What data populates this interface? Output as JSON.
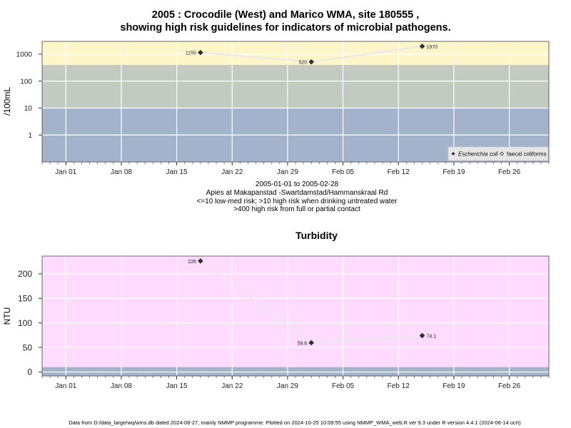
{
  "title_line1": "2005 : Crocodile (West) and Marico WMA, site 180555 ,",
  "title_line2": "showing high risk guidelines for indicators of microbial pathogens.",
  "subtitle_lines": [
    "2005-01-01 to 2005-02-28",
    "Apies at Makapanstad -Swartdamstad/Hammanskraal Rd",
    "<=10 low-med risk; >10 high risk when drinking untreated water",
    ">400 high risk from full or partial contact"
  ],
  "footer": "Data from D:/data_large/wq/wms.db dated 2024-08-27, mainly NMMP programme. Plotted on 2024-10-25 10:09:55 using NMMP_WMA_web.R ver 9.3 under R version 4.4.1 (2024-06-14 ucrt)",
  "colors": {
    "zone_low": "#a3b3cc",
    "zone_mid": "#c3cbc0",
    "zone_high": "#fef6c9",
    "turbidity_bg": "#ffdcff",
    "turbidity_low": "#a3b3cc",
    "grid": "#ffffff",
    "series_line": "#e8e8e8",
    "marker": "#333333"
  },
  "chart_data": [
    {
      "type": "line",
      "title": "",
      "ylabel": "/100mL",
      "y_scale": "log",
      "ylim": [
        0.1,
        3000
      ],
      "y_ticks": [
        1,
        10,
        100,
        1000
      ],
      "y_tick_labels": [
        "1",
        "10",
        "100",
        "1000"
      ],
      "x_ticks": [
        "2005-01-01",
        "2005-01-08",
        "2005-01-15",
        "2005-01-22",
        "2005-01-29",
        "2005-02-05",
        "2005-02-12",
        "2005-02-19",
        "2005-02-26"
      ],
      "x_tick_labels": [
        "Jan 01",
        "Jan 08",
        "Jan 15",
        "Jan 22",
        "Jan 29",
        "Feb 05",
        "Feb 12",
        "Feb 19",
        "Feb 26"
      ],
      "xlim": [
        "2004-12-29",
        "2005-03-03"
      ],
      "bands": [
        {
          "from": 0.1,
          "to": 10,
          "color": "#a3b3cc"
        },
        {
          "from": 10,
          "to": 400,
          "color": "#c3cbc0"
        },
        {
          "from": 400,
          "to": 3000,
          "color": "#fef6c9"
        }
      ],
      "legend": {
        "position": "bottom-right",
        "entries": [
          "Escherichia coli",
          "faecal coliforms"
        ]
      },
      "series": [
        {
          "name": "Escherichia coli",
          "points": [
            {
              "x": "2005-01-18",
              "y": 1155,
              "label": "1155"
            },
            {
              "x": "2005-02-01",
              "y": 520,
              "label": "520"
            },
            {
              "x": "2005-02-15",
              "y": 1970,
              "label": "1970"
            }
          ]
        },
        {
          "name": "faecal coliforms",
          "points": []
        }
      ]
    },
    {
      "type": "line",
      "title": "Turbidity",
      "ylabel": "NTU",
      "ylim": [
        -8,
        236
      ],
      "y_ticks": [
        0,
        50,
        100,
        150,
        200
      ],
      "y_tick_labels": [
        "0",
        "50",
        "100",
        "150",
        "200"
      ],
      "x_ticks": [
        "2005-01-01",
        "2005-01-08",
        "2005-01-15",
        "2005-01-22",
        "2005-01-29",
        "2005-02-05",
        "2005-02-12",
        "2005-02-19",
        "2005-02-26"
      ],
      "x_tick_labels": [
        "Jan 01",
        "Jan 08",
        "Jan 15",
        "Jan 22",
        "Jan 29",
        "Feb 05",
        "Feb 12",
        "Feb 19",
        "Feb 26"
      ],
      "xlim": [
        "2004-12-29",
        "2005-03-03"
      ],
      "bands": [
        {
          "from": -8,
          "to": 10,
          "color": "#a3b3cc"
        },
        {
          "from": 10,
          "to": 236,
          "color": "#ffdcff"
        }
      ],
      "series": [
        {
          "name": "",
          "points": [
            {
              "x": "2005-01-18",
              "y": 226,
              "label": "226"
            },
            {
              "x": "2005-02-01",
              "y": 59.6,
              "label": "59.6"
            },
            {
              "x": "2005-02-15",
              "y": 74.1,
              "label": "74.1"
            }
          ]
        }
      ]
    }
  ]
}
